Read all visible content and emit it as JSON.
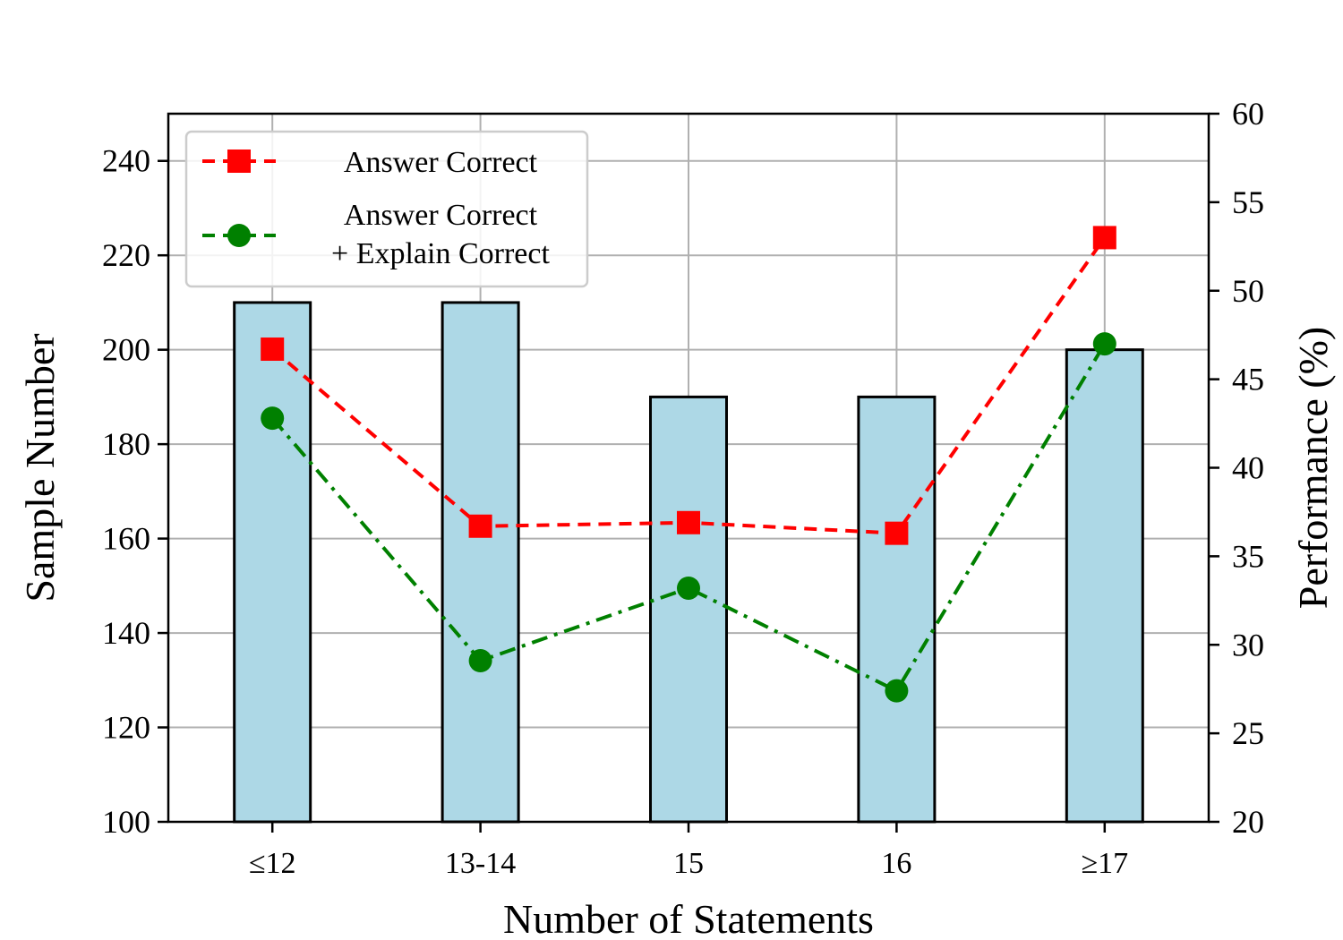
{
  "chart_data": {
    "type": "bar",
    "categories": [
      "≤12",
      "13-14",
      "15",
      "16",
      "≥17"
    ],
    "bars": {
      "values": [
        210,
        210,
        190,
        190,
        200
      ],
      "color": "#add8e6",
      "edge_color": "#000000"
    },
    "lines": [
      {
        "name": "Answer Correct",
        "values": [
          46.7,
          36.7,
          36.9,
          36.3,
          53.0
        ],
        "color": "#ff0000",
        "marker": "square",
        "linestyle": "dashed"
      },
      {
        "name": "Answer Correct\n+ Explain Correct",
        "name_lines": [
          "Answer Correct",
          "+ Explain Correct"
        ],
        "values": [
          42.8,
          29.1,
          33.2,
          27.4,
          47.0
        ],
        "color": "#008000",
        "marker": "circle",
        "linestyle": "dashdot"
      }
    ],
    "xlabel": "Number of Statements",
    "ylabel": "Sample Number",
    "y2label": "Performance (%)",
    "ylim": [
      100,
      250
    ],
    "yticks": [
      100,
      120,
      140,
      160,
      180,
      200,
      220,
      240
    ],
    "y2lim": [
      20,
      60
    ],
    "y2ticks": [
      20,
      25,
      30,
      35,
      40,
      45,
      50,
      55,
      60
    ],
    "grid": true,
    "legend_position": "upper-left"
  }
}
